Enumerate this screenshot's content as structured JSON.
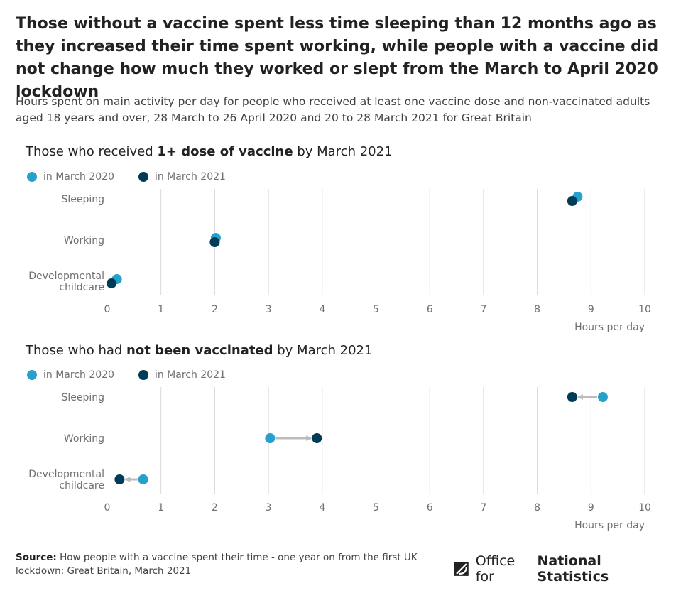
{
  "title": "Those without a vaccine spent less time sleeping than 12 months ago as they increased their time spent working, while people with a vaccine did not change how much they worked or slept from the March to April 2020 lockdown",
  "subtitle": "Hours spent on main activity per day for people who received at least one vaccine dose and non-vaccinated adults aged 18 years and over, 28 March to 26 April 2020 and 20 to 28 March 2021 for Great Britain",
  "colors": {
    "march_2020": "#27a0cc",
    "march_2021": "#003c57",
    "arrow": "#bcbcbc",
    "grid": "#d9d9d9",
    "axis_text": "#707071"
  },
  "chart_data": [
    {
      "type": "dot",
      "title_prefix": "Those who received ",
      "title_bold": "1+ dose of vaccine",
      "title_suffix": " by March 2021",
      "legend": [
        "in March 2020",
        "in March 2021"
      ],
      "categories": [
        "Sleeping",
        "Working",
        "Developmental childcare"
      ],
      "series": [
        {
          "name": "in March 2020",
          "values": [
            8.75,
            2.02,
            0.18
          ]
        },
        {
          "name": "in March 2021",
          "values": [
            8.65,
            2.0,
            0.08
          ]
        }
      ],
      "xlim": [
        0,
        10
      ],
      "xticks": [
        "0",
        "1",
        "2",
        "3",
        "4",
        "5",
        "6",
        "7",
        "8",
        "9",
        "10"
      ],
      "xlabel": "Hours per day",
      "show_arrows": false
    },
    {
      "type": "dot",
      "title_prefix": "Those who had ",
      "title_bold": "not been vaccinated",
      "title_suffix": " by March 2021",
      "legend": [
        "in March 2020",
        "in March 2021"
      ],
      "categories": [
        "Sleeping",
        "Working",
        "Developmental childcare"
      ],
      "series": [
        {
          "name": "in March 2020",
          "values": [
            9.22,
            3.03,
            0.67
          ]
        },
        {
          "name": "in March 2021",
          "values": [
            8.65,
            3.9,
            0.23
          ]
        }
      ],
      "xlim": [
        0,
        10
      ],
      "xticks": [
        "0",
        "1",
        "2",
        "3",
        "4",
        "5",
        "6",
        "7",
        "8",
        "9",
        "10"
      ],
      "xlabel": "Hours per day",
      "show_arrows": true
    }
  ],
  "source": {
    "label": "Source:",
    "text": " How people with a vaccine spent their time - one year on from the first UK lockdown: Great Britain, March 2021"
  },
  "logo": {
    "prefix": "Office for ",
    "bold": "National Statistics",
    "icon": "ons-logo-icon"
  }
}
